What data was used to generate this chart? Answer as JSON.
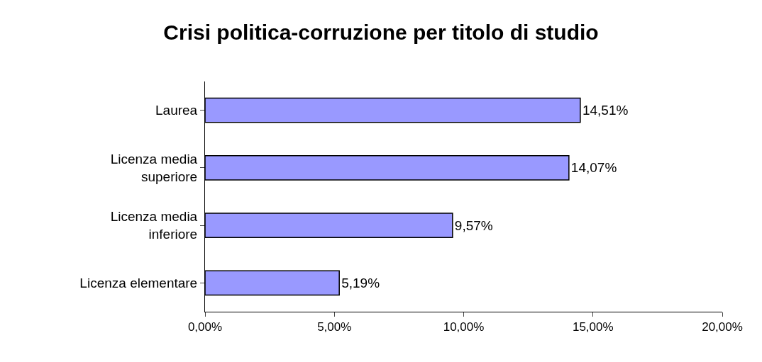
{
  "chart_data": {
    "type": "bar",
    "orientation": "horizontal",
    "title": "Crisi politica-corruzione per titolo di studio",
    "categories": [
      "Laurea",
      "Licenza media superiore",
      "Licenza media inferiore",
      "Licenza elementare"
    ],
    "values": [
      14.51,
      14.07,
      9.57,
      5.19
    ],
    "value_labels": [
      "14,51%",
      "14,07%",
      "9,57%",
      "5,19%"
    ],
    "color": "#9999ff",
    "xlim": [
      0,
      20
    ],
    "xticks": [
      {
        "value": 0,
        "label": "0,00%"
      },
      {
        "value": 5,
        "label": "5,00%"
      },
      {
        "value": 10,
        "label": "10,00%"
      },
      {
        "value": 15,
        "label": "15,00%"
      },
      {
        "value": 20,
        "label": "20,00%"
      }
    ]
  }
}
